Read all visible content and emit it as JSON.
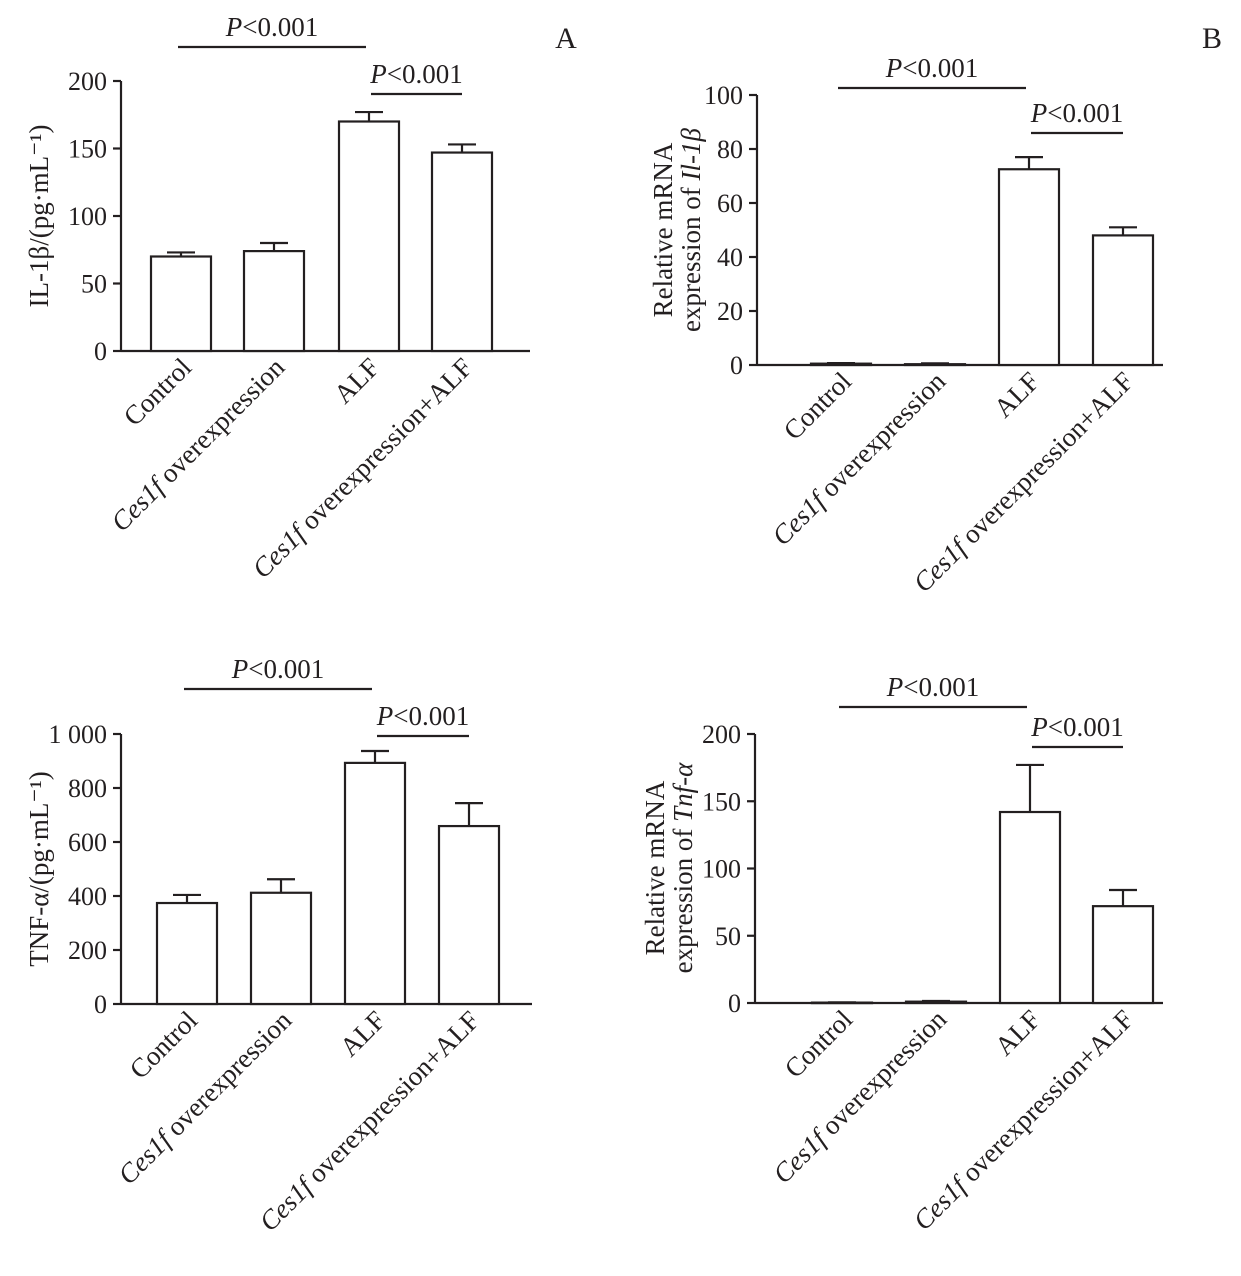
{
  "chart_data": [
    {
      "type": "bar",
      "panel": "A",
      "title": "",
      "ylabel": [
        "IL-1β/(pg·mL⁻¹)"
      ],
      "ylabel_italic": "",
      "categories": [
        "Control",
        "Ces1f overexpression",
        "ALF",
        "Ces1f overexpression+ALF"
      ],
      "values": [
        70,
        74,
        170,
        147
      ],
      "errors": [
        3,
        6,
        7,
        6
      ],
      "ylim": [
        0,
        200
      ],
      "yticks": [
        0,
        50,
        100,
        150,
        200
      ],
      "ytick_labels": [
        "0",
        "50",
        "100",
        "150",
        "200"
      ],
      "significance": [
        {
          "from": 0,
          "to": 2,
          "label_italic": "P",
          "label": "<0.001"
        },
        {
          "from": 2,
          "to": 3,
          "label_italic": "P",
          "label": "<0.001"
        }
      ]
    },
    {
      "type": "bar",
      "panel": "B",
      "title": "",
      "ylabel": [
        "Relative mRNA",
        "expression of "
      ],
      "ylabel_italic": "Il-1β",
      "categories": [
        "Control",
        "Ces1f overexpression",
        "ALF",
        "Ces1f overexpression+ALF"
      ],
      "values": [
        0.5,
        0.3,
        72.5,
        48
      ],
      "errors": [
        0.2,
        0.3,
        4.5,
        3
      ],
      "ylim": [
        0,
        100
      ],
      "yticks": [
        0,
        20,
        40,
        60,
        80,
        100
      ],
      "ytick_labels": [
        "0",
        "20",
        "40",
        "60",
        "80",
        "100"
      ],
      "significance": [
        {
          "from": 0,
          "to": 2,
          "label_italic": "P",
          "label": "<0.001"
        },
        {
          "from": 2,
          "to": 3,
          "label_italic": "P",
          "label": "<0.001"
        }
      ]
    },
    {
      "type": "bar",
      "panel": "",
      "title": "",
      "ylabel": [
        "TNF-α/(pg·mL⁻¹)"
      ],
      "ylabel_italic": "",
      "categories": [
        "Control",
        "Ces1f overexpression",
        "ALF",
        "Ces1f overexpression+ALF"
      ],
      "values": [
        374,
        412,
        893,
        659
      ],
      "errors": [
        30,
        50,
        44,
        85
      ],
      "ylim": [
        0,
        1000
      ],
      "yticks": [
        0,
        200,
        400,
        600,
        800,
        1000
      ],
      "ytick_labels": [
        "0",
        "200",
        "400",
        "600",
        "800",
        "1 000"
      ],
      "significance": [
        {
          "from": 0,
          "to": 2,
          "label_italic": "P",
          "label": "<0.001"
        },
        {
          "from": 2,
          "to": 3,
          "label_italic": "P",
          "label": "<0.001"
        }
      ]
    },
    {
      "type": "bar",
      "panel": "",
      "title": "",
      "ylabel": [
        "Relative mRNA",
        "expression of "
      ],
      "ylabel_italic": "Tnf-α",
      "categories": [
        "Control",
        "Ces1f overexpression",
        "ALF",
        "Ces1f overexpression+ALF"
      ],
      "values": [
        0.3,
        1,
        142,
        72
      ],
      "errors": [
        0.2,
        0.5,
        35,
        12
      ],
      "ylim": [
        0,
        200
      ],
      "yticks": [
        0,
        50,
        100,
        150,
        200
      ],
      "ytick_labels": [
        "0",
        "50",
        "100",
        "150",
        "200"
      ],
      "significance": [
        {
          "from": 0,
          "to": 2,
          "label_italic": "P",
          "label": "<0.001"
        },
        {
          "from": 2,
          "to": 3,
          "label_italic": "P",
          "label": "<0.001"
        }
      ]
    }
  ]
}
